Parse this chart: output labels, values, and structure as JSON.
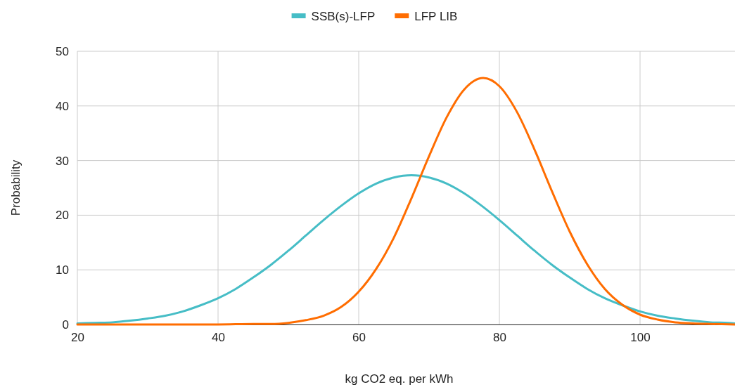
{
  "chart_data": {
    "type": "line",
    "xlabel": "kg CO2 eq. per kWh",
    "ylabel": "Probability",
    "xlim": [
      20,
      113.5
    ],
    "xticks": [
      20,
      40,
      60,
      80,
      100
    ],
    "ylim": [
      0,
      50
    ],
    "yticks": [
      0,
      10,
      20,
      30,
      40,
      50
    ],
    "grid": true,
    "legend": "top",
    "marker": "none",
    "line_style": "solid",
    "series": [
      {
        "name": "SSB(s)-LFP",
        "color": "#46bdc6",
        "x": [
          20,
          22.5,
          25,
          27.5,
          30,
          32.5,
          35,
          37.5,
          40,
          42.5,
          45,
          47.5,
          50,
          52.5,
          55,
          57.5,
          60,
          62.5,
          65,
          67.5,
          70,
          72.5,
          75,
          77.5,
          80,
          82.5,
          85,
          87.5,
          90,
          92.5,
          95,
          97.5,
          100,
          102.5,
          105,
          107.5,
          110,
          112.5,
          113.5
        ],
        "values": [
          0.2,
          0.3,
          0.4,
          0.7,
          1.1,
          1.6,
          2.4,
          3.5,
          4.8,
          6.5,
          8.6,
          10.9,
          13.5,
          16.3,
          19.1,
          21.7,
          24.0,
          25.8,
          26.9,
          27.3,
          26.9,
          25.8,
          24.0,
          21.7,
          19.1,
          16.3,
          13.5,
          10.9,
          8.6,
          6.5,
          4.8,
          3.5,
          2.4,
          1.6,
          1.1,
          0.7,
          0.4,
          0.3,
          0.2
        ]
      },
      {
        "name": "LFP LIB",
        "color": "#ff6d01",
        "x": [
          20,
          30,
          40,
          45,
          47.5,
          50,
          52.5,
          55,
          57.5,
          60,
          62.5,
          65,
          67.5,
          70,
          72.5,
          75,
          77.7,
          80,
          82.5,
          85,
          87.5,
          90,
          92.5,
          95,
          97.5,
          100,
          102.5,
          105,
          107.5,
          110,
          113.5
        ],
        "values": [
          0,
          0,
          0,
          0.1,
          0.1,
          0.3,
          0.8,
          1.6,
          3.2,
          6.0,
          10.2,
          15.9,
          23.1,
          30.8,
          37.9,
          43.0,
          45.1,
          43.6,
          38.9,
          32.0,
          24.3,
          17.0,
          11.0,
          6.5,
          3.6,
          1.8,
          0.9,
          0.4,
          0.2,
          0.1,
          0
        ]
      }
    ]
  }
}
